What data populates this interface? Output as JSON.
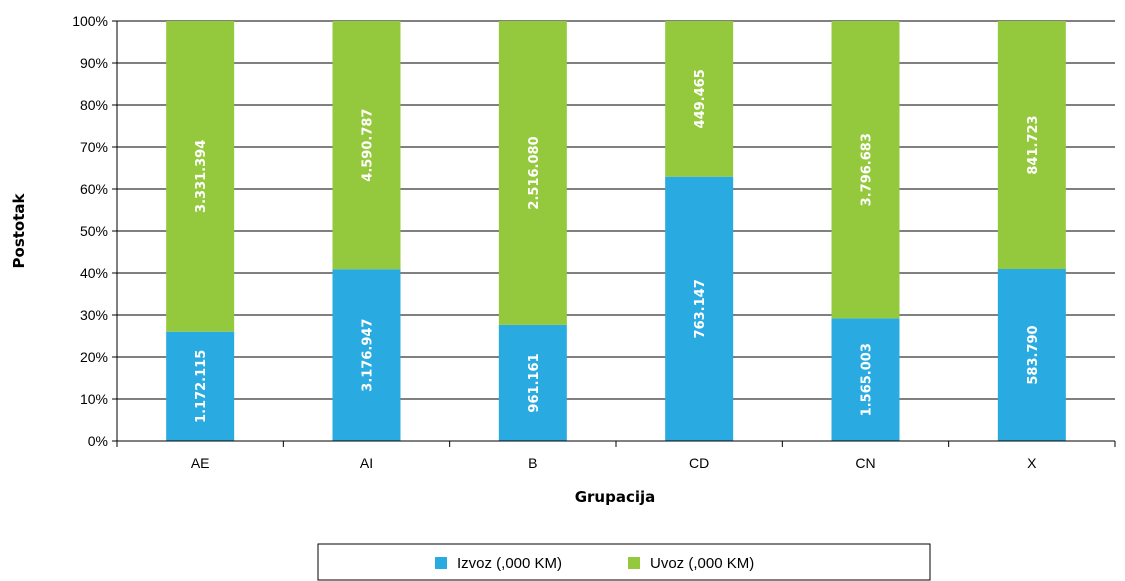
{
  "chart_data": {
    "type": "bar",
    "stacked": true,
    "normalized": true,
    "categories": [
      "AE",
      "AI",
      "B",
      "CD",
      "CN",
      "X"
    ],
    "series": [
      {
        "name": "Izvoz (,000 KM)",
        "color": "#29abe2",
        "values": [
          1172115,
          3176947,
          961161,
          763147,
          1565003,
          583790
        ],
        "labels": [
          "1.172.115",
          "3.176.947",
          "961.161",
          "763.147",
          "1.565.003",
          "583.790"
        ]
      },
      {
        "name": "Uvoz (,000 KM)",
        "color": "#95c93d",
        "values": [
          3331394,
          4590787,
          2516080,
          449465,
          3796683,
          841723
        ],
        "labels": [
          "3.331.394",
          "4.590.787",
          "2.516.080",
          "449.465",
          "3.796.683",
          "841.723"
        ]
      }
    ],
    "xlabel": "Grupacija",
    "ylabel": "Postotak",
    "ylim": [
      0,
      100
    ],
    "yticks": [
      "0%",
      "10%",
      "20%",
      "30%",
      "40%",
      "50%",
      "60%",
      "70%",
      "80%",
      "90%",
      "100%"
    ],
    "grid": true,
    "legend": "bottom"
  }
}
